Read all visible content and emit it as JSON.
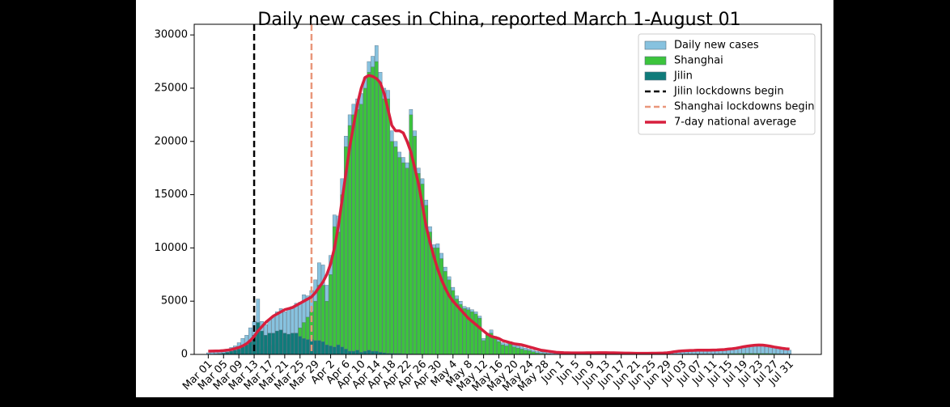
{
  "chart_data": {
    "type": "bar",
    "title": "Daily new cases in China, reported March 1-August 01",
    "categories": [
      "Mar 01",
      null,
      null,
      null,
      "Mar 05",
      null,
      null,
      null,
      "Mar 09",
      null,
      null,
      null,
      "Mar 13",
      null,
      null,
      null,
      "Mar 17",
      null,
      null,
      null,
      "Mar 21",
      null,
      null,
      null,
      "Mar 25",
      null,
      null,
      null,
      "Mar 29",
      null,
      null,
      null,
      "Apr 2",
      null,
      null,
      null,
      "Apr 6",
      null,
      null,
      null,
      "Apr 10",
      null,
      null,
      null,
      "Apr 14",
      null,
      null,
      null,
      "Apr 18",
      null,
      null,
      null,
      "Apr 22",
      null,
      null,
      null,
      "Apr 26",
      null,
      null,
      null,
      "Apr 30",
      null,
      null,
      null,
      "May 4",
      null,
      null,
      null,
      "May 8",
      null,
      null,
      null,
      "May 12",
      null,
      null,
      null,
      "May 16",
      null,
      null,
      null,
      "May 20",
      null,
      null,
      null,
      "May 24",
      null,
      null,
      null,
      "May 28",
      null,
      null,
      null,
      "Jun 1",
      null,
      null,
      null,
      "Jun 5",
      null,
      null,
      null,
      "Jun 9",
      null,
      null,
      null,
      "Jun 13",
      null,
      null,
      null,
      "Jun 17",
      null,
      null,
      null,
      "Jun 21",
      null,
      null,
      null,
      "Jun 25",
      null,
      null,
      null,
      "Jun 29",
      null,
      null,
      null,
      "Jul 03",
      null,
      null,
      null,
      "Jul 07",
      null,
      null,
      null,
      "Jul 11",
      null,
      null,
      null,
      "Jul 15",
      null,
      null,
      null,
      "Jul 19",
      null,
      null,
      null,
      "Jul 23",
      null,
      null,
      null,
      "Jul 27",
      null,
      null,
      null,
      "Jul 31"
    ],
    "series": [
      {
        "name": "Daily new cases",
        "color": "#87c2df",
        "values": [
          150,
          200,
          250,
          300,
          400,
          500,
          650,
          800,
          1100,
          1500,
          1800,
          2500,
          3100,
          5200,
          3100,
          2800,
          3300,
          3500,
          4000,
          4300,
          4000,
          4200,
          4500,
          4800,
          4900,
          5600,
          5500,
          6000,
          7000,
          8600,
          8400,
          6500,
          9300,
          13100,
          13000,
          16500,
          20500,
          22500,
          23500,
          24000,
          24500,
          26000,
          27500,
          28000,
          29000,
          26500,
          25000,
          24800,
          21000,
          20000,
          19000,
          18500,
          18000,
          23000,
          21000,
          17500,
          16500,
          14500,
          12000,
          10300,
          10400,
          9500,
          8200,
          7300,
          6300,
          5500,
          5000,
          4500,
          4400,
          4200,
          4000,
          3600,
          1500,
          2000,
          2300,
          1700,
          1400,
          1100,
          1000,
          1200,
          900,
          800,
          700,
          600,
          500,
          400,
          300,
          250,
          200,
          150,
          120,
          100,
          100,
          90,
          80,
          80,
          70,
          90,
          100,
          110,
          120,
          130,
          150,
          140,
          130,
          120,
          110,
          100,
          100,
          100,
          100,
          90,
          80,
          80,
          70,
          80,
          90,
          100,
          110,
          130,
          150,
          200,
          350,
          330,
          300,
          330,
          350,
          380,
          400,
          420,
          400,
          380,
          420,
          450,
          480,
          500,
          520,
          560,
          600,
          700,
          800,
          850,
          900,
          950,
          900,
          850,
          800,
          750,
          700,
          650,
          550,
          450,
          400
        ]
      },
      {
        "name": "Shanghai",
        "color": "#3cc43c",
        "values": [
          5,
          5,
          5,
          10,
          20,
          30,
          50,
          60,
          70,
          80,
          100,
          150,
          200,
          300,
          500,
          700,
          800,
          900,
          1000,
          1500,
          1200,
          1500,
          1800,
          2000,
          2500,
          3000,
          3500,
          4000,
          5000,
          6500,
          6500,
          5000,
          7500,
          12000,
          11500,
          15000,
          19500,
          21500,
          22500,
          23000,
          23500,
          25000,
          26500,
          27000,
          27500,
          25500,
          24000,
          24000,
          20000,
          19500,
          18500,
          18000,
          17500,
          22500,
          20500,
          17000,
          16000,
          14000,
          11500,
          10000,
          10000,
          9000,
          7800,
          7000,
          6000,
          5200,
          4700,
          4300,
          4200,
          4000,
          3800,
          3400,
          1300,
          1800,
          2000,
          1500,
          1200,
          900,
          800,
          1000,
          700,
          600,
          500,
          400,
          350,
          250,
          150,
          100,
          80,
          50,
          30,
          30,
          25,
          25,
          20,
          20,
          20,
          20,
          20,
          20,
          15,
          15,
          15,
          15,
          15,
          15,
          15,
          15,
          15,
          15,
          10,
          10,
          10,
          10,
          10,
          10,
          10,
          10,
          10,
          10,
          20,
          30,
          40,
          40,
          40,
          50,
          50,
          50,
          60,
          60,
          60,
          60,
          60,
          60,
          70,
          70,
          70,
          80,
          80,
          90,
          100,
          100,
          100,
          100,
          100,
          90,
          90,
          80,
          80,
          70,
          60,
          50,
          50
        ]
      },
      {
        "name": "Jilin",
        "color": "#0f7b7a",
        "values": [
          20,
          30,
          50,
          80,
          120,
          200,
          300,
          400,
          500,
          700,
          900,
          1200,
          1800,
          3000,
          2200,
          1800,
          2000,
          2000,
          2200,
          2300,
          2000,
          1900,
          2000,
          2000,
          1700,
          1500,
          1400,
          1400,
          1300,
          1300,
          1200,
          900,
          800,
          700,
          900,
          700,
          500,
          300,
          300,
          400,
          200,
          300,
          400,
          300,
          300,
          200,
          150,
          100,
          100,
          80,
          80,
          60,
          50,
          50,
          40,
          40,
          30,
          30,
          20,
          20,
          20,
          20,
          20,
          20,
          20,
          20,
          20,
          20,
          20,
          20,
          10,
          10,
          10,
          10,
          10,
          10,
          10,
          10,
          10,
          10,
          10,
          10,
          10,
          10,
          10,
          10,
          10,
          10,
          10,
          10,
          0,
          0,
          0,
          0,
          0,
          0,
          0,
          0,
          0,
          0,
          0,
          0,
          0,
          0,
          0,
          0,
          0,
          0,
          0,
          0,
          0,
          0,
          0,
          0,
          0,
          0,
          0,
          0,
          0,
          0,
          0,
          0,
          0,
          0,
          0,
          0,
          0,
          0,
          0,
          0,
          0,
          0,
          0,
          0,
          0,
          0,
          0,
          0,
          0,
          0,
          0,
          0,
          0,
          0,
          0,
          0,
          0,
          0,
          0,
          0,
          0,
          0,
          0
        ]
      },
      {
        "name": "7-day national average",
        "type": "line",
        "color": "#d71f3d",
        "values": [
          300,
          310,
          320,
          330,
          360,
          400,
          450,
          550,
          650,
          800,
          1000,
          1300,
          1700,
          2200,
          2600,
          3000,
          3300,
          3600,
          3800,
          4000,
          4200,
          4300,
          4400,
          4600,
          4800,
          5000,
          5200,
          5400,
          5800,
          6300,
          6800,
          7500,
          8500,
          10000,
          12000,
          14500,
          17000,
          19500,
          21500,
          23500,
          25000,
          26000,
          26200,
          26100,
          25900,
          25500,
          24500,
          23000,
          21500,
          21000,
          21000,
          20800,
          20000,
          19000,
          17500,
          16000,
          14000,
          12000,
          10500,
          9200,
          8000,
          7000,
          6200,
          5500,
          5000,
          4600,
          4200,
          3800,
          3400,
          3100,
          2800,
          2500,
          2200,
          1900,
          1700,
          1600,
          1500,
          1300,
          1200,
          1100,
          1000,
          950,
          900,
          800,
          700,
          600,
          500,
          400,
          350,
          300,
          250,
          200,
          180,
          160,
          150,
          140,
          140,
          140,
          140,
          150,
          150,
          150,
          160,
          160,
          160,
          150,
          150,
          140,
          130,
          120,
          120,
          110,
          100,
          100,
          100,
          100,
          110,
          110,
          120,
          130,
          150,
          200,
          260,
          300,
          330,
          350,
          370,
          380,
          400,
          400,
          400,
          400,
          410,
          420,
          440,
          460,
          500,
          530,
          580,
          650,
          720,
          780,
          830,
          860,
          880,
          870,
          830,
          770,
          700,
          640,
          580,
          530,
          500
        ]
      }
    ],
    "vlines": [
      {
        "name": "Jilin lockdowns begin",
        "color": "#000000",
        "x": 12
      },
      {
        "name": "Shanghai lockdowns begin",
        "color": "#e9967a",
        "x": 27
      }
    ],
    "ylim": [
      0,
      31000
    ],
    "yticks": [
      0,
      5000,
      10000,
      15000,
      20000,
      25000,
      30000
    ],
    "legend": "upper right"
  }
}
